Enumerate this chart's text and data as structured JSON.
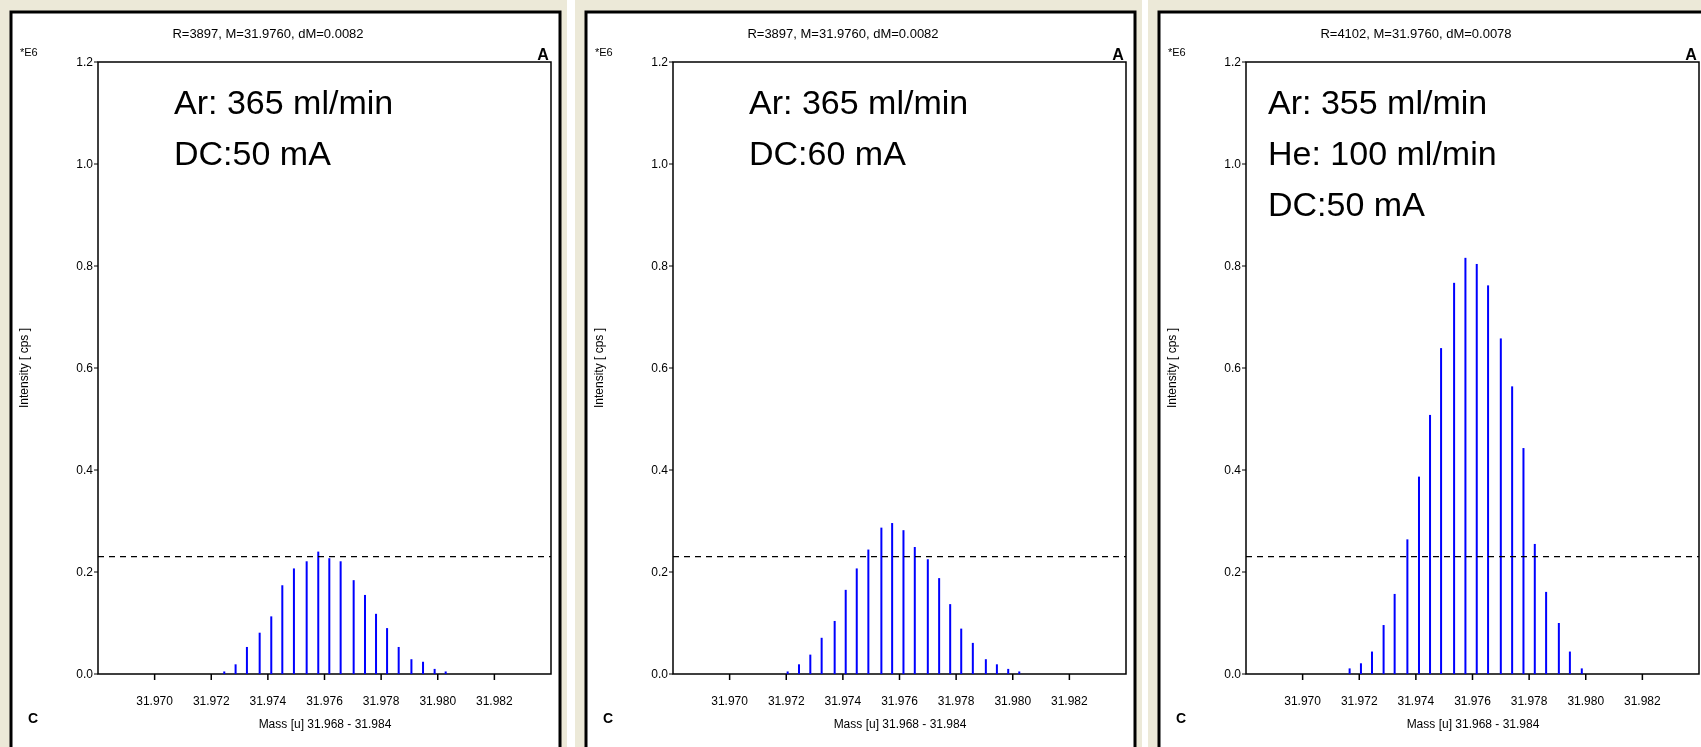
{
  "chart_data": [
    {
      "type": "bar",
      "title": "R=3897, M=31.9760, dM=0.0082",
      "xlabel": "Mass [u]  31.968 - 31.984",
      "ylabel": "Intensity [ cps ]",
      "annotations": [
        "*E6",
        "A",
        "C",
        "Ar:  365 ml/min",
        "DC:50 mA"
      ],
      "x": [
        31.97246,
        31.97286,
        31.97326,
        31.97371,
        31.97412,
        31.97451,
        31.97492,
        31.97537,
        31.97578,
        31.97617,
        31.97657,
        31.97703,
        31.97743,
        31.97782,
        31.97821,
        31.97862,
        31.97907,
        31.97948,
        31.97989,
        31.98028
      ],
      "series": [
        {
          "color": "#0000ff",
          "values": [
            0.005,
            0.019,
            0.053,
            0.081,
            0.113,
            0.174,
            0.207,
            0.221,
            0.24,
            0.227,
            0.221,
            0.184,
            0.155,
            0.118,
            0.09,
            0.053,
            0.029,
            0.024,
            0.01,
            0.005
          ]
        }
      ],
      "xlim": [
        31.968,
        31.984
      ],
      "xticks": [
        {
          "value": 31.97,
          "label": "31.970"
        },
        {
          "value": 31.972,
          "label": "31.972"
        },
        {
          "value": 31.974,
          "label": "31.974"
        },
        {
          "value": 31.976,
          "label": "31.976"
        },
        {
          "value": 31.978,
          "label": "31.978"
        },
        {
          "value": 31.98,
          "label": "31.980"
        },
        {
          "value": 31.982,
          "label": "31.982"
        }
      ],
      "ylim": [
        0,
        1.2
      ],
      "yticks": [
        {
          "value": 0,
          "label": "0.0"
        },
        {
          "value": 0.2,
          "label": "0.2"
        },
        {
          "value": 0.4,
          "label": "0.4"
        },
        {
          "value": 0.6,
          "label": "0.6"
        },
        {
          "value": 0.8,
          "label": "0.8"
        },
        {
          "value": 1.0,
          "label": "1.0"
        },
        {
          "value": 1.2,
          "label": "1.2"
        }
      ],
      "ref_lines": [
        {
          "axis": "y",
          "value": 0.23,
          "color": "#000000",
          "line_style": "dashed"
        }
      ]
    },
    {
      "type": "bar",
      "title": "R=3897, M=31.9760, dM=0.0082",
      "xlabel": "Mass [u]  31.968 - 31.984",
      "ylabel": "Intensity [ cps ]",
      "annotations": [
        "*E6",
        "A",
        "C",
        "Ar:  365 ml/min",
        "DC:60 mA"
      ],
      "x": [
        31.97205,
        31.97245,
        31.97285,
        31.97325,
        31.97371,
        31.9741,
        31.97449,
        31.9749,
        31.97536,
        31.97574,
        31.97614,
        31.97654,
        31.977,
        31.9774,
        31.97779,
        31.97818,
        31.97859,
        31.97905,
        31.97944,
        31.97984,
        31.98023
      ],
      "series": [
        {
          "color": "#0000ff",
          "values": [
            0.005,
            0.019,
            0.038,
            0.071,
            0.104,
            0.165,
            0.207,
            0.244,
            0.287,
            0.296,
            0.282,
            0.249,
            0.225,
            0.188,
            0.137,
            0.089,
            0.061,
            0.029,
            0.019,
            0.01,
            0.005
          ]
        }
      ],
      "xlim": [
        31.968,
        31.984
      ],
      "xticks": [
        {
          "value": 31.97,
          "label": "31.970"
        },
        {
          "value": 31.972,
          "label": "31.972"
        },
        {
          "value": 31.974,
          "label": "31.974"
        },
        {
          "value": 31.976,
          "label": "31.976"
        },
        {
          "value": 31.978,
          "label": "31.978"
        },
        {
          "value": 31.98,
          "label": "31.980"
        },
        {
          "value": 31.982,
          "label": "31.982"
        }
      ],
      "ylim": [
        0,
        1.2
      ],
      "yticks": [
        {
          "value": 0,
          "label": "0.0"
        },
        {
          "value": 0.2,
          "label": "0.2"
        },
        {
          "value": 0.4,
          "label": "0.4"
        },
        {
          "value": 0.6,
          "label": "0.6"
        },
        {
          "value": 0.8,
          "label": "0.8"
        },
        {
          "value": 1.0,
          "label": "1.0"
        },
        {
          "value": 1.2,
          "label": "1.2"
        }
      ],
      "ref_lines": [
        {
          "axis": "y",
          "value": 0.23,
          "color": "#000000",
          "line_style": "dashed"
        }
      ]
    },
    {
      "type": "bar",
      "title": "R=4102, M=31.9760, dM=0.0078",
      "xlabel": "Mass [u]  31.968 - 31.984",
      "ylabel": "Intensity [ cps ]",
      "annotations": [
        "*E6",
        "A",
        "C",
        "Ar:  355 ml/min",
        "He: 100 ml/min",
        "DC:50 mA"
      ],
      "x": [
        31.97166,
        31.97206,
        31.97245,
        31.97286,
        31.97325,
        31.9737,
        31.97411,
        31.9745,
        31.97489,
        31.97535,
        31.97575,
        31.97615,
        31.97655,
        31.977,
        31.9774,
        31.9778,
        31.9782,
        31.9786,
        31.97905,
        31.97944,
        31.97986
      ],
      "series": [
        {
          "color": "#0000ff",
          "values": [
            0.011,
            0.021,
            0.044,
            0.096,
            0.157,
            0.264,
            0.387,
            0.508,
            0.639,
            0.767,
            0.816,
            0.804,
            0.762,
            0.658,
            0.564,
            0.443,
            0.255,
            0.161,
            0.1,
            0.044,
            0.011
          ]
        }
      ],
      "xlim": [
        31.968,
        31.984
      ],
      "xticks": [
        {
          "value": 31.97,
          "label": "31.970"
        },
        {
          "value": 31.972,
          "label": "31.972"
        },
        {
          "value": 31.974,
          "label": "31.974"
        },
        {
          "value": 31.976,
          "label": "31.976"
        },
        {
          "value": 31.978,
          "label": "31.978"
        },
        {
          "value": 31.98,
          "label": "31.980"
        },
        {
          "value": 31.982,
          "label": "31.982"
        }
      ],
      "ylim": [
        0,
        1.2
      ],
      "yticks": [
        {
          "value": 0,
          "label": "0.0"
        },
        {
          "value": 0.2,
          "label": "0.2"
        },
        {
          "value": 0.4,
          "label": "0.4"
        },
        {
          "value": 0.6,
          "label": "0.6"
        },
        {
          "value": 0.8,
          "label": "0.8"
        },
        {
          "value": 1.0,
          "label": "1.0"
        },
        {
          "value": 1.2,
          "label": "1.2"
        }
      ],
      "ref_lines": [
        {
          "axis": "y",
          "value": 0.23,
          "color": "#000000",
          "line_style": "dashed"
        }
      ]
    }
  ]
}
